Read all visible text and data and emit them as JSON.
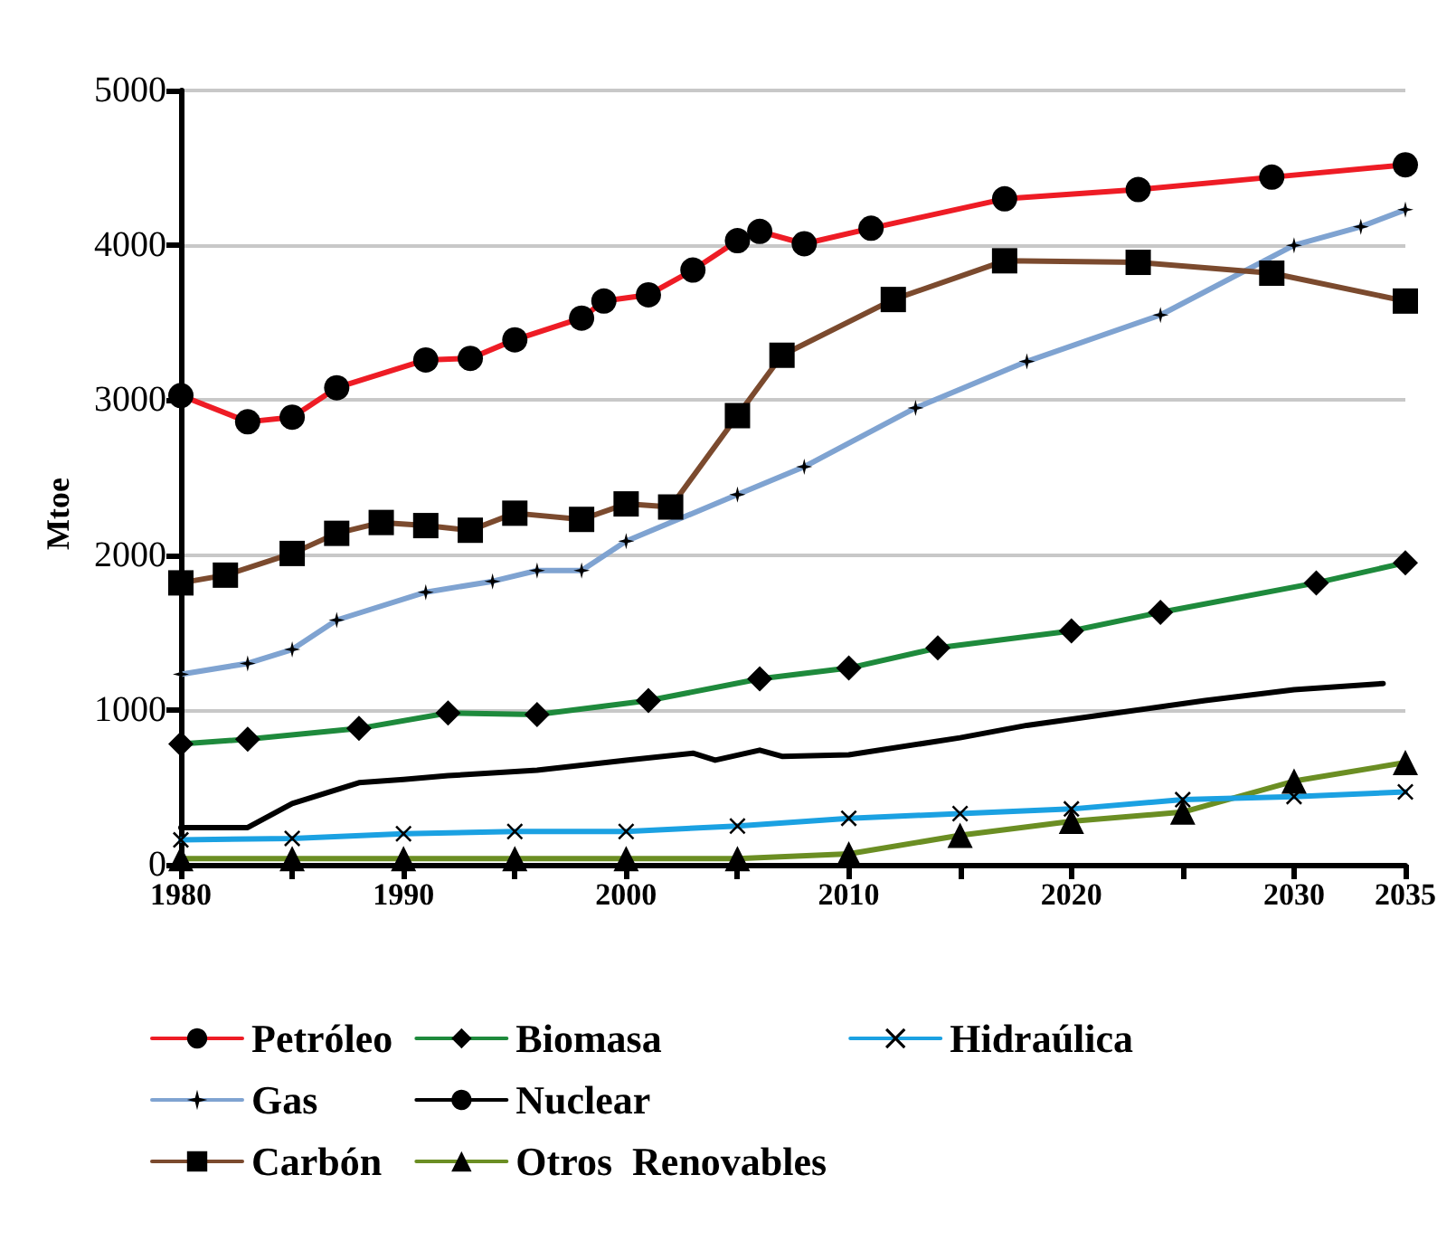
{
  "chart_data": {
    "type": "line",
    "ylabel": "Mtoe",
    "xlim": [
      1980,
      2035
    ],
    "ylim": [
      0,
      5000
    ],
    "xticks": [
      1980,
      {
        "value": 1985,
        "label": null
      },
      1990,
      {
        "value": 1995,
        "label": null
      },
      2000,
      {
        "value": 2005,
        "label": null
      },
      2010,
      {
        "value": 2015,
        "label": null
      },
      2020,
      {
        "value": 2025,
        "label": null
      },
      2030,
      2035
    ],
    "yticks": [
      0,
      1000,
      2000,
      3000,
      4000,
      5000
    ],
    "grid": "y",
    "legend": "bottom",
    "line_style": "solid",
    "series": [
      {
        "name": "Petróleo",
        "color": "#ee1c25",
        "marker": "circle",
        "x": [
          1980,
          1983,
          1985,
          1987,
          1991,
          1993,
          1995,
          1998,
          1999,
          2001,
          2003,
          2005,
          2006,
          2008,
          2011,
          2017,
          2023,
          2029,
          2035
        ],
        "values": [
          3030,
          2860,
          2890,
          3080,
          3260,
          3270,
          3390,
          3530,
          3640,
          3680,
          3840,
          4030,
          4090,
          4010,
          4110,
          4300,
          4360,
          4440,
          4520
        ]
      },
      {
        "name": "Gas",
        "color": "#7fa3d1",
        "marker": "star",
        "x": [
          1980,
          1983,
          1985,
          1987,
          1991,
          1994,
          1996,
          1998,
          2000,
          2005,
          2008,
          2013,
          2018,
          2024,
          2030,
          2033,
          2035
        ],
        "values": [
          1230,
          1300,
          1390,
          1580,
          1760,
          1830,
          1900,
          1900,
          2090,
          2390,
          2570,
          2950,
          3250,
          3550,
          4000,
          4120,
          4230
        ]
      },
      {
        "name": "Carbón",
        "color": "#7b4a2e",
        "marker": "square",
        "x": [
          1980,
          1982,
          1985,
          1987,
          1989,
          1991,
          1993,
          1995,
          1998,
          2000,
          2002,
          2005,
          2007,
          2012,
          2017,
          2023,
          2029,
          2035
        ],
        "values": [
          1820,
          1870,
          2010,
          2140,
          2210,
          2190,
          2160,
          2270,
          2230,
          2330,
          2310,
          2900,
          3290,
          3650,
          3900,
          3890,
          3820,
          3640
        ]
      },
      {
        "name": "Biomasa",
        "color": "#1e8a3c",
        "marker": "diamond",
        "x": [
          1980,
          1983,
          1988,
          1992,
          1996,
          2001,
          2006,
          2010,
          2014,
          2020,
          2024,
          2031,
          2035
        ],
        "values": [
          780,
          810,
          880,
          980,
          970,
          1060,
          1200,
          1270,
          1400,
          1510,
          1630,
          1820,
          1950
        ]
      },
      {
        "name": "Nuclear",
        "color": "#000000",
        "marker": "none",
        "x": [
          1980,
          1983,
          1985,
          1988,
          1990,
          1992,
          1996,
          2000,
          2003,
          2004,
          2006,
          2007,
          2010,
          2015,
          2018,
          2022,
          2026,
          2030,
          2034
        ],
        "values": [
          240,
          240,
          395,
          530,
          550,
          575,
          610,
          675,
          720,
          675,
          740,
          700,
          710,
          820,
          900,
          980,
          1060,
          1130,
          1170
        ]
      },
      {
        "name": "Otros  Renovables",
        "color": "#6b8e23",
        "marker": "triangle",
        "x": [
          1980,
          1985,
          1990,
          1995,
          2000,
          2005,
          2010,
          2015,
          2020,
          2025,
          2030,
          2035
        ],
        "values": [
          40,
          40,
          40,
          40,
          40,
          40,
          70,
          190,
          280,
          340,
          540,
          660
        ]
      },
      {
        "name": "Hidraúlica",
        "color": "#1ba1e2",
        "marker": "cross",
        "x": [
          1980,
          1985,
          1990,
          1995,
          2000,
          2005,
          2010,
          2015,
          2020,
          2025,
          2030,
          2035
        ],
        "values": [
          160,
          170,
          200,
          215,
          215,
          250,
          300,
          330,
          360,
          420,
          440,
          470
        ]
      }
    ]
  }
}
